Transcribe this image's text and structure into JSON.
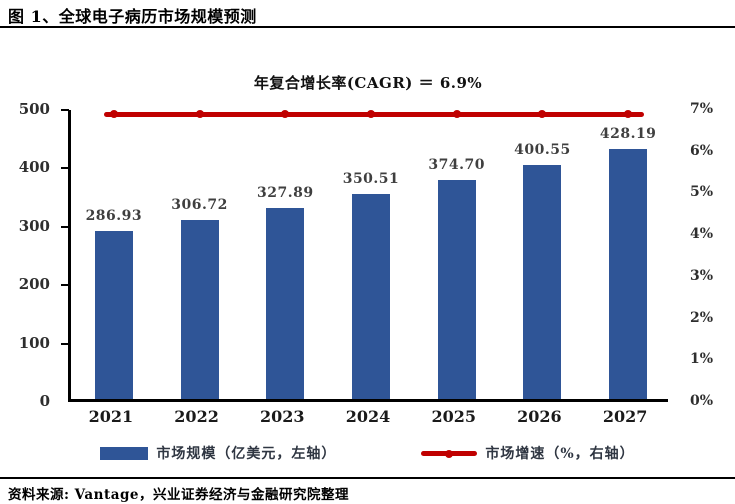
{
  "header": {
    "title": "图 1、全球电子病历市场规模预测"
  },
  "chart_data": {
    "type": "bar",
    "title": "全球电子病历市场规模预测",
    "annotation": "年复合增长率(CAGR) ＝ 6.9%",
    "categories": [
      "2021",
      "2022",
      "2023",
      "2024",
      "2025",
      "2026",
      "2027"
    ],
    "series": [
      {
        "name": "市场规模（亿美元，左轴）",
        "type": "bar",
        "axis": "left",
        "color": "#2F5597",
        "values": [
          286.93,
          306.72,
          327.89,
          350.51,
          374.7,
          400.55,
          428.19
        ]
      },
      {
        "name": "市场增速（%，右轴）",
        "type": "line",
        "axis": "right",
        "color": "#C00000",
        "values": [
          6.9,
          6.9,
          6.9,
          6.9,
          6.9,
          6.9,
          6.9
        ]
      }
    ],
    "value_labels": [
      "286.93",
      "306.72",
      "327.89",
      "350.51",
      "374.70",
      "400.55",
      "428.19"
    ],
    "left_axis": {
      "min": 0,
      "max": 500,
      "step": 100,
      "ticks": [
        "0",
        "100",
        "200",
        "300",
        "400",
        "500"
      ]
    },
    "right_axis": {
      "min": 0,
      "max": 7,
      "step": 1,
      "ticks": [
        "0%",
        "1%",
        "2%",
        "3%",
        "4%",
        "5%",
        "6%",
        "7%"
      ]
    },
    "grid": false,
    "legend_position": "bottom"
  },
  "legend": {
    "items": [
      {
        "label": "市场规模（亿美元，左轴）",
        "swatch": "bar",
        "color": "#2F5597"
      },
      {
        "label": "市场增速（%，右轴）",
        "swatch": "line",
        "color": "#C00000"
      }
    ]
  },
  "footer": {
    "source": "资料来源: Vantage，兴业证券经济与金融研究院整理"
  }
}
